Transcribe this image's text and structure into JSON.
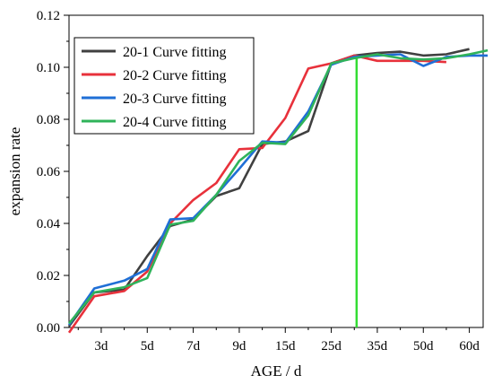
{
  "chart_data": {
    "type": "line",
    "title": "",
    "xlabel": "AGE  / d",
    "ylabel": "expansion  rate",
    "x_categories": [
      "3d",
      "5d",
      "7d",
      "9d",
      "15d",
      "25d",
      "35d",
      "50d",
      "60d"
    ],
    "x_category_positions": [
      2,
      4,
      6,
      8,
      10,
      12,
      14,
      16,
      18
    ],
    "xlim": [
      0.6,
      18.6
    ],
    "ylim": [
      0.0,
      0.12
    ],
    "y_ticks": [
      "0.00",
      "0.02",
      "0.04",
      "0.06",
      "0.08",
      "0.10",
      "0.12"
    ],
    "y_tick_values": [
      0.0,
      0.02,
      0.04,
      0.06,
      0.08,
      0.1,
      0.12
    ],
    "legend_position": "top-left",
    "grid": false,
    "vertical_marker": {
      "x": 13.1,
      "color": "#33dd33"
    },
    "series": [
      {
        "name": "20-1 Curve fitting",
        "color": "#404040",
        "x": [
          0.6,
          1.7,
          3.0,
          4.0,
          5.0,
          6.0,
          7.0,
          8.0,
          9.0,
          10.0,
          11.0,
          12.0,
          13.0,
          14.0,
          15.0,
          16.0,
          17.0,
          18.0
        ],
        "y": [
          0.0005,
          0.0135,
          0.0145,
          0.0275,
          0.039,
          0.0415,
          0.0505,
          0.0535,
          0.0705,
          0.0715,
          0.0755,
          0.1015,
          0.1045,
          0.1055,
          0.106,
          0.1045,
          0.105,
          0.107
        ]
      },
      {
        "name": "20-2 Curve fitting",
        "color": "#e8313b",
        "x": [
          0.6,
          1.7,
          3.0,
          4.0,
          5.0,
          6.0,
          7.0,
          8.0,
          9.0,
          10.0,
          11.0,
          12.0,
          13.0,
          14.0,
          15.0,
          16.0,
          17.0
        ],
        "y": [
          -0.002,
          0.012,
          0.014,
          0.0215,
          0.04,
          0.049,
          0.0555,
          0.0685,
          0.069,
          0.0805,
          0.0995,
          0.1015,
          0.1045,
          0.1025,
          0.1025,
          0.1025,
          0.102
        ]
      },
      {
        "name": "20-3 Curve fitting",
        "color": "#1f6fd6",
        "x": [
          0.6,
          1.7,
          3.0,
          4.0,
          5.0,
          6.0,
          7.0,
          8.0,
          9.0,
          10.0,
          11.0,
          12.0,
          13.0,
          14.0,
          15.0,
          16.0,
          17.0,
          18.0,
          18.8
        ],
        "y": [
          0.001,
          0.015,
          0.018,
          0.0225,
          0.0415,
          0.042,
          0.051,
          0.061,
          0.0715,
          0.071,
          0.083,
          0.101,
          0.104,
          0.1045,
          0.105,
          0.1005,
          0.104,
          0.1045,
          0.1045
        ]
      },
      {
        "name": "20-4 Curve fitting",
        "color": "#2fb35a",
        "x": [
          0.6,
          1.7,
          3.0,
          4.0,
          5.0,
          6.0,
          7.0,
          8.0,
          9.0,
          10.0,
          11.0,
          12.0,
          13.0,
          14.0,
          15.0,
          16.0,
          17.0,
          18.0,
          18.8
        ],
        "y": [
          0.0015,
          0.0135,
          0.0155,
          0.019,
          0.0395,
          0.041,
          0.051,
          0.064,
          0.071,
          0.0705,
          0.0815,
          0.1015,
          0.1035,
          0.105,
          0.1035,
          0.103,
          0.1035,
          0.105,
          0.1065
        ]
      }
    ]
  }
}
